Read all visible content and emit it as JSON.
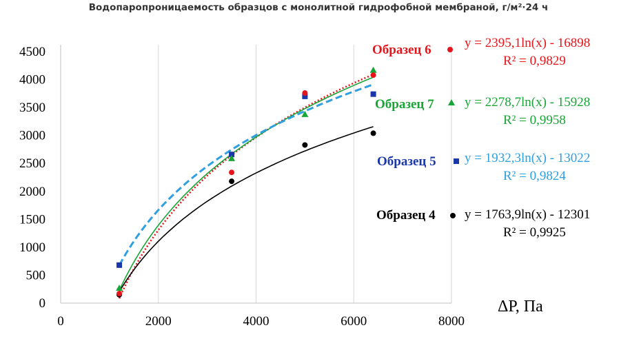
{
  "chart_data": {
    "type": "scatter",
    "title": "Водопаропроницаемость образцов с монолитной гидрофобной мембраной, г/м²·24 ч",
    "xlabel": "ΔР, Па",
    "ylabel": "",
    "xlim": [
      0,
      8000
    ],
    "ylim": [
      0,
      4500
    ],
    "x_ticks": [
      "0",
      "2000",
      "4000",
      "6000",
      "8000"
    ],
    "y_ticks": [
      "0",
      "500",
      "1000",
      "1500",
      "2000",
      "2500",
      "3000",
      "3500",
      "4000",
      "4500"
    ],
    "grid": "vertical",
    "legend_placement": "right",
    "series": [
      {
        "name": "Образец 6",
        "color": "#e8141b",
        "marker": "circle",
        "trend_style": "dotted",
        "trend": {
          "type": "log",
          "a": 2395.1,
          "b": -16898
        },
        "equation": "y = 2395,1ln(x)  - 16898",
        "r2": "R² = 0,9829",
        "points": [
          [
            1200,
            170
          ],
          [
            3500,
            2340
          ],
          [
            5000,
            3760
          ],
          [
            6400,
            4080
          ]
        ]
      },
      {
        "name": "Образец 7",
        "color": "#17a535",
        "marker": "triangle",
        "trend_style": "solid",
        "trend": {
          "type": "log",
          "a": 2278.7,
          "b": -15928
        },
        "equation": "y = 2278,7ln(x)  - 15928",
        "r2": "R² = 0,9958",
        "points": [
          [
            1200,
            270
          ],
          [
            3500,
            2590
          ],
          [
            5000,
            3380
          ],
          [
            6400,
            4170
          ]
        ]
      },
      {
        "name": "Образец 5",
        "color": "#1a37a8",
        "trend_color": "#2e9fe0",
        "marker": "square",
        "trend_style": "dashed",
        "trend": {
          "type": "log",
          "a": 1932.3,
          "b": -13022
        },
        "equation": "y = 1932,3ln(x)  - 13022",
        "r2": "R² = 0,9824",
        "points": [
          [
            1200,
            680
          ],
          [
            3500,
            2660
          ],
          [
            5000,
            3700
          ],
          [
            6400,
            3740
          ]
        ]
      },
      {
        "name": "Образец 4",
        "color": "#000000",
        "marker": "circle",
        "trend_style": "solid",
        "trend": {
          "type": "log",
          "a": 1763.9,
          "b": -12301
        },
        "equation": "y = 1763,9ln(x)  - 12301",
        "r2": "R² = 0,9925",
        "points": [
          [
            1200,
            150
          ],
          [
            3500,
            2180
          ],
          [
            5000,
            2830
          ],
          [
            6400,
            3040
          ]
        ]
      }
    ]
  }
}
